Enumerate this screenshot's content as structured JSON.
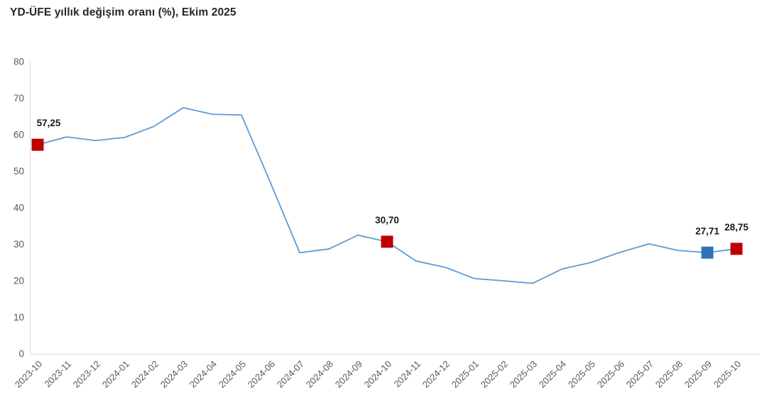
{
  "title": "YD-ÜFE yıllık değişim oranı (%), Ekim 2025",
  "chart_data": {
    "type": "line",
    "title": "YD-ÜFE yıllık değişim oranı (%), Ekim 2025",
    "x": [
      "2023-10",
      "2023-11",
      "2023-12",
      "2024-01",
      "2024-02",
      "2024-03",
      "2024-04",
      "2024-05",
      "2024-06",
      "2024-07",
      "2024-08",
      "2024-09",
      "2024-10",
      "2024-11",
      "2024-12",
      "2025-01",
      "2025-02",
      "2025-03",
      "2025-04",
      "2025-05",
      "2025-06",
      "2025-07",
      "2025-08",
      "2025-09",
      "2025-10"
    ],
    "values": [
      57.25,
      59.4,
      58.4,
      59.3,
      62.3,
      67.4,
      65.6,
      65.4,
      46.8,
      27.7,
      28.7,
      32.5,
      30.7,
      25.4,
      23.7,
      20.6,
      20.0,
      19.3,
      23.2,
      25.0,
      27.8,
      30.1,
      28.3,
      27.71,
      28.75
    ],
    "xlabel": "",
    "ylabel": "",
    "ylim": [
      0,
      80
    ],
    "y_ticks": [
      0,
      10,
      20,
      30,
      40,
      50,
      60,
      70,
      80
    ],
    "grid": false,
    "legend": "none",
    "line_color": "#5B9BD5",
    "axis_color": "#D9D9D9",
    "tick_label_color": "#595959",
    "marker_label_color": "#1A1A1A",
    "markers": [
      {
        "x": "2023-10",
        "value": 57.25,
        "label": "57,25",
        "color": "#C00000"
      },
      {
        "x": "2024-10",
        "value": 30.7,
        "label": "30,70",
        "color": "#C00000"
      },
      {
        "x": "2025-09",
        "value": 27.71,
        "label": "27,71",
        "color": "#2E75B6"
      },
      {
        "x": "2025-10",
        "value": 28.75,
        "label": "28,75",
        "color": "#C00000"
      }
    ]
  }
}
